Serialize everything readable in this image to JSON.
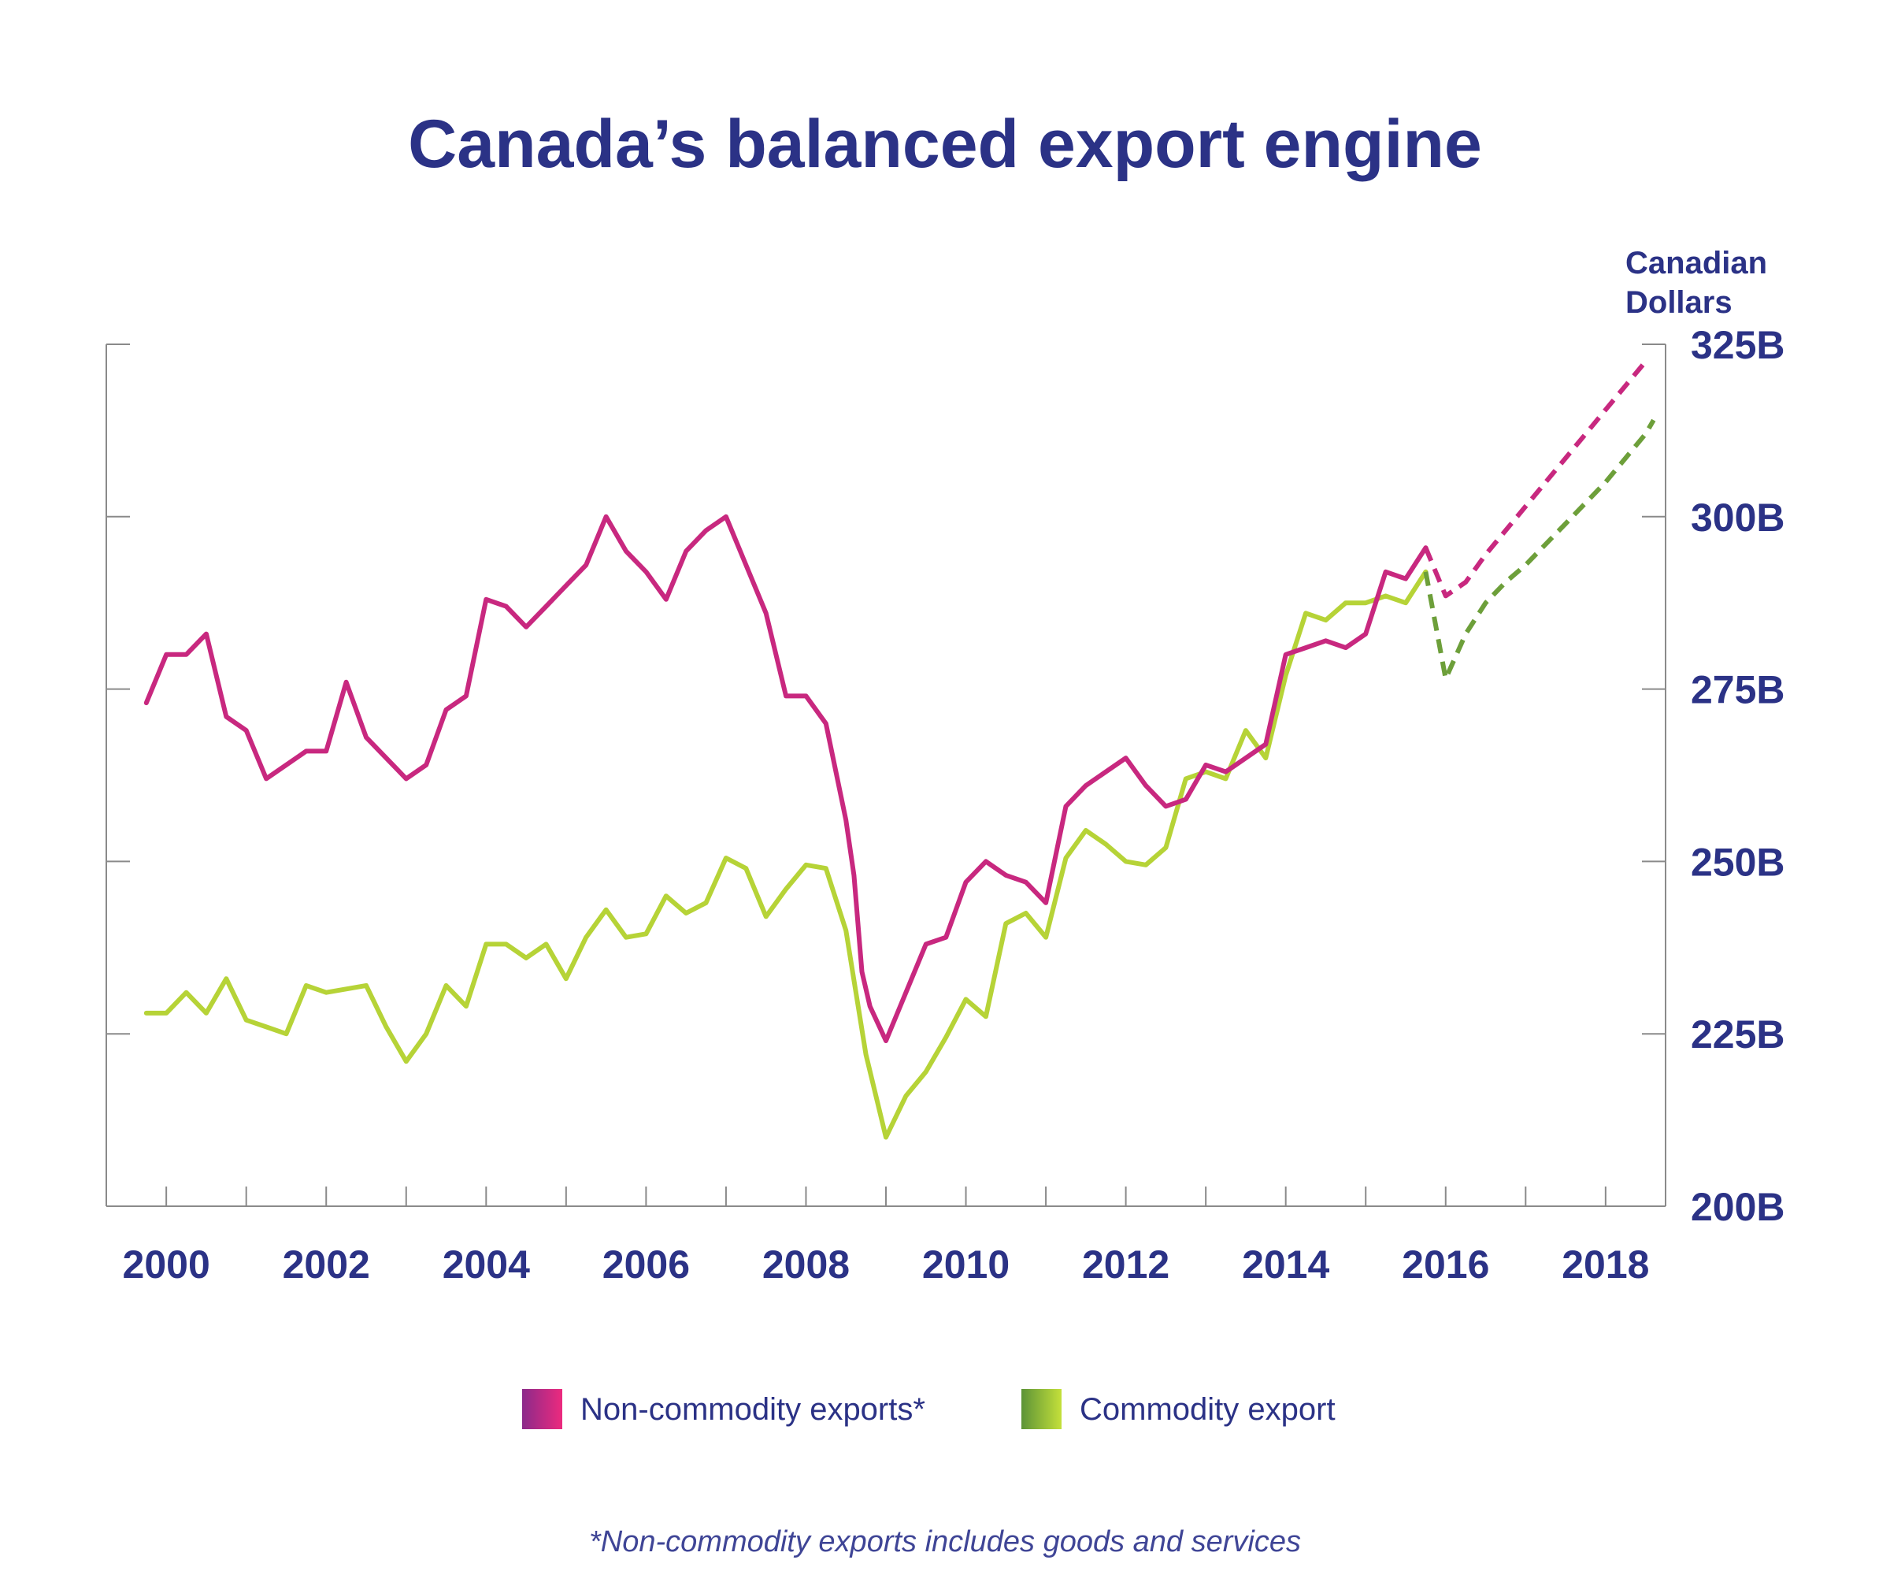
{
  "chart_data": {
    "type": "line",
    "title": "Canada’s balanced export engine",
    "ylabel": "Canadian Dollars",
    "ylabel_lines": [
      "Canadian",
      "Dollars"
    ],
    "ylim": [
      200,
      325
    ],
    "y_axis_side": "right",
    "y_ticks": [
      {
        "value": 200,
        "label": "200B"
      },
      {
        "value": 225,
        "label": "225B"
      },
      {
        "value": 250,
        "label": "250B"
      },
      {
        "value": 275,
        "label": "275B"
      },
      {
        "value": 300,
        "label": "300B"
      },
      {
        "value": 325,
        "label": "325B"
      }
    ],
    "xlim": [
      1999.25,
      2018.75
    ],
    "x_ticks": [
      {
        "value": 2000,
        "label": "2000"
      },
      {
        "value": 2002,
        "label": "2002"
      },
      {
        "value": 2004,
        "label": "2004"
      },
      {
        "value": 2006,
        "label": "2006"
      },
      {
        "value": 2008,
        "label": "2008"
      },
      {
        "value": 2010,
        "label": "2010"
      },
      {
        "value": 2012,
        "label": "2012"
      },
      {
        "value": 2014,
        "label": "2014"
      },
      {
        "value": 2016,
        "label": "2016"
      },
      {
        "value": 2018,
        "label": "2018"
      }
    ],
    "x_minor_step": 1,
    "legend_position": "bottom-center",
    "series": [
      {
        "name": "Non-commodity exports*",
        "color": "#c8287f",
        "gradient": [
          "#8b2a8a",
          "#ec2a7e"
        ],
        "actual": [
          [
            1999.75,
            273
          ],
          [
            2000,
            280
          ],
          [
            2000.25,
            280
          ],
          [
            2000.5,
            283
          ],
          [
            2000.75,
            271
          ],
          [
            2001,
            269
          ],
          [
            2001.25,
            262
          ],
          [
            2001.5,
            264
          ],
          [
            2001.75,
            266
          ],
          [
            2002,
            266
          ],
          [
            2002.25,
            276
          ],
          [
            2002.5,
            268
          ],
          [
            2002.75,
            265
          ],
          [
            2003,
            262
          ],
          [
            2003.25,
            264
          ],
          [
            2003.5,
            272
          ],
          [
            2003.75,
            274
          ],
          [
            2004,
            288
          ],
          [
            2004.25,
            287
          ],
          [
            2004.5,
            284
          ],
          [
            2004.75,
            287
          ],
          [
            2005,
            290
          ],
          [
            2005.25,
            293
          ],
          [
            2005.5,
            300
          ],
          [
            2005.75,
            295
          ],
          [
            2006,
            292
          ],
          [
            2006.25,
            288
          ],
          [
            2006.5,
            295
          ],
          [
            2006.75,
            298
          ],
          [
            2007,
            300
          ],
          [
            2007.25,
            293
          ],
          [
            2007.5,
            286
          ],
          [
            2007.75,
            274
          ],
          [
            2008,
            274
          ],
          [
            2008.25,
            270
          ],
          [
            2008.5,
            256
          ],
          [
            2008.6,
            248
          ],
          [
            2008.7,
            234
          ],
          [
            2008.8,
            229
          ],
          [
            2009,
            224
          ],
          [
            2009.25,
            231
          ],
          [
            2009.5,
            238
          ],
          [
            2009.75,
            239
          ],
          [
            2010,
            247
          ],
          [
            2010.25,
            250
          ],
          [
            2010.5,
            248
          ],
          [
            2010.75,
            247
          ],
          [
            2011,
            244
          ],
          [
            2011.25,
            258
          ],
          [
            2011.5,
            261
          ],
          [
            2011.75,
            263
          ],
          [
            2012,
            265
          ],
          [
            2012.25,
            261
          ],
          [
            2012.5,
            258
          ],
          [
            2012.75,
            259
          ],
          [
            2013,
            264
          ],
          [
            2013.25,
            263
          ],
          [
            2013.5,
            265
          ],
          [
            2013.75,
            267
          ],
          [
            2014,
            280
          ],
          [
            2014.25,
            281
          ],
          [
            2014.5,
            282
          ],
          [
            2014.75,
            281
          ],
          [
            2015,
            283
          ],
          [
            2015.25,
            292
          ],
          [
            2015.5,
            291
          ],
          [
            2015.75,
            295.5
          ]
        ],
        "forecast": [
          [
            2015.75,
            295.5
          ],
          [
            2016,
            288.5
          ],
          [
            2016.25,
            290.5
          ],
          [
            2016.5,
            294.5
          ],
          [
            2016.75,
            298
          ],
          [
            2017,
            301.5
          ],
          [
            2017.25,
            305
          ],
          [
            2017.5,
            308.5
          ],
          [
            2017.75,
            312
          ],
          [
            2018,
            315.5
          ],
          [
            2018.25,
            319
          ],
          [
            2018.5,
            322.5
          ]
        ]
      },
      {
        "name": "Commodity export",
        "color": "#b6d337",
        "forecast_color": "#6d9f3a",
        "gradient": [
          "#5c9337",
          "#c4e03a"
        ],
        "actual": [
          [
            1999.75,
            228
          ],
          [
            2000,
            228
          ],
          [
            2000.25,
            231
          ],
          [
            2000.5,
            228
          ],
          [
            2000.75,
            233
          ],
          [
            2001,
            227
          ],
          [
            2001.25,
            226
          ],
          [
            2001.5,
            225
          ],
          [
            2001.75,
            232
          ],
          [
            2002,
            231
          ],
          [
            2002.25,
            231.5
          ],
          [
            2002.5,
            232
          ],
          [
            2002.75,
            226
          ],
          [
            2003,
            221
          ],
          [
            2003.25,
            225
          ],
          [
            2003.5,
            232
          ],
          [
            2003.75,
            229
          ],
          [
            2004,
            238
          ],
          [
            2004.25,
            238
          ],
          [
            2004.5,
            236
          ],
          [
            2004.75,
            238
          ],
          [
            2005,
            233
          ],
          [
            2005.25,
            239
          ],
          [
            2005.5,
            243
          ],
          [
            2005.75,
            239
          ],
          [
            2006,
            239.5
          ],
          [
            2006.25,
            245
          ],
          [
            2006.5,
            242.5
          ],
          [
            2006.75,
            244
          ],
          [
            2007,
            250.5
          ],
          [
            2007.25,
            249
          ],
          [
            2007.5,
            242
          ],
          [
            2007.75,
            246
          ],
          [
            2008,
            249.5
          ],
          [
            2008.25,
            249
          ],
          [
            2008.5,
            240
          ],
          [
            2008.75,
            222
          ],
          [
            2009,
            210
          ],
          [
            2009.25,
            216
          ],
          [
            2009.5,
            219.5
          ],
          [
            2009.75,
            224.5
          ],
          [
            2010,
            230
          ],
          [
            2010.25,
            227.5
          ],
          [
            2010.5,
            241
          ],
          [
            2010.75,
            242.5
          ],
          [
            2011,
            239
          ],
          [
            2011.25,
            250.5
          ],
          [
            2011.5,
            254.5
          ],
          [
            2011.75,
            252.5
          ],
          [
            2012,
            250
          ],
          [
            2012.25,
            249.5
          ],
          [
            2012.5,
            252
          ],
          [
            2012.75,
            262
          ],
          [
            2013,
            263
          ],
          [
            2013.25,
            262
          ],
          [
            2013.5,
            269
          ],
          [
            2013.75,
            265
          ],
          [
            2014,
            277
          ],
          [
            2014.25,
            286
          ],
          [
            2014.5,
            285
          ],
          [
            2014.75,
            287.5
          ],
          [
            2015,
            287.5
          ],
          [
            2015.25,
            288.5
          ],
          [
            2015.5,
            287.5
          ],
          [
            2015.75,
            292
          ]
        ],
        "forecast": [
          [
            2015.75,
            292
          ],
          [
            2016,
            276.5
          ],
          [
            2016.25,
            283
          ],
          [
            2016.5,
            287.5
          ],
          [
            2016.75,
            290.5
          ],
          [
            2017,
            293
          ],
          [
            2017.25,
            296
          ],
          [
            2017.5,
            299
          ],
          [
            2017.75,
            302
          ],
          [
            2018,
            305
          ],
          [
            2018.25,
            308.5
          ],
          [
            2018.5,
            312
          ],
          [
            2018.6,
            314
          ]
        ]
      }
    ],
    "footnote": "*Non-commodity exports includes goods and services"
  }
}
